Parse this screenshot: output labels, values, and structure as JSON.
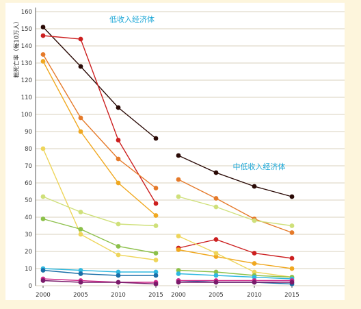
{
  "chart_data": {
    "type": "line",
    "ylabel": "粗死亡率（每10万人）",
    "ylim": [
      0,
      160
    ],
    "yticks": [
      0,
      10,
      20,
      30,
      40,
      50,
      60,
      70,
      80,
      90,
      100,
      110,
      120,
      130,
      140,
      150,
      160
    ],
    "x": [
      2000,
      2005,
      2010,
      2015
    ],
    "grid": true,
    "panels": [
      {
        "title": "低收入经济体",
        "series": [
          {
            "color": "#2a0a06",
            "values": [
              151,
              128,
              104,
              86
            ]
          },
          {
            "color": "#cc1f1f",
            "values": [
              146,
              144,
              85,
              48
            ]
          },
          {
            "color": "#e57a2a",
            "values": [
              135,
              98,
              74,
              57
            ]
          },
          {
            "color": "#f0a820",
            "values": [
              131,
              90,
              60,
              41
            ]
          },
          {
            "color": "#eed55a",
            "values": [
              80,
              30,
              18,
              15
            ]
          },
          {
            "color": "#cfe07a",
            "values": [
              52,
              43,
              36,
              35
            ]
          },
          {
            "color": "#8cc04a",
            "values": [
              39,
              33,
              23,
              19
            ]
          },
          {
            "color": "#2eb8e0",
            "values": [
              10,
              9,
              8,
              8
            ]
          },
          {
            "color": "#1a6fa8",
            "values": [
              9,
              7,
              6,
              6
            ]
          },
          {
            "color": "#d02a8a",
            "values": [
              4,
              3,
              2,
              2
            ]
          },
          {
            "color": "#7a1a6a",
            "values": [
              3,
              2,
              2,
              1
            ]
          }
        ]
      },
      {
        "title": "中低收入经济体",
        "series": [
          {
            "color": "#2a0a06",
            "values": [
              76,
              66,
              58,
              52
            ]
          },
          {
            "color": "#cc1f1f",
            "values": [
              22,
              27,
              19,
              16
            ]
          },
          {
            "color": "#e57a2a",
            "values": [
              62,
              51,
              39,
              31
            ]
          },
          {
            "color": "#f0a820",
            "values": [
              21,
              17,
              13,
              10
            ]
          },
          {
            "color": "#eed55a",
            "values": [
              29,
              19,
              8,
              5
            ]
          },
          {
            "color": "#cfe07a",
            "values": [
              52,
              46,
              38,
              35
            ]
          },
          {
            "color": "#8cc04a",
            "values": [
              9,
              8,
              6,
              5
            ]
          },
          {
            "color": "#2eb8e0",
            "values": [
              7,
              6,
              5,
              4
            ]
          },
          {
            "color": "#1a6fa8",
            "values": [
              3,
              2,
              2,
              1
            ]
          },
          {
            "color": "#d02a8a",
            "values": [
              3,
              3,
              3,
              3
            ]
          },
          {
            "color": "#7a1a6a",
            "values": [
              2,
              2,
              2,
              2
            ]
          }
        ]
      }
    ]
  }
}
